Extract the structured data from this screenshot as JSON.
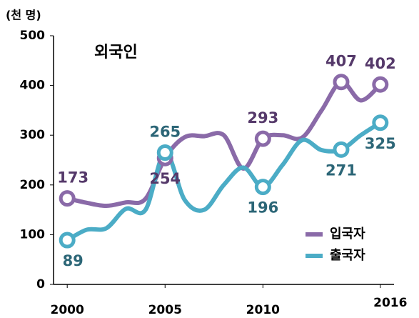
{
  "chart_data": {
    "type": "line",
    "unit_label": "(천 명)",
    "annotation": "외국인",
    "x": [
      2000,
      2001,
      2002,
      2003,
      2004,
      2005,
      2006,
      2007,
      2008,
      2009,
      2010,
      2011,
      2012,
      2013,
      2014,
      2015,
      2016
    ],
    "series": [
      {
        "name": "입국자",
        "color": "#8a6aa8",
        "label_color": "#55396a",
        "values": [
          173,
          164,
          158,
          165,
          172,
          254,
          296,
          298,
          300,
          233,
          293,
          300,
          295,
          350,
          407,
          370,
          402
        ],
        "value_labels": [
          "173",
          null,
          null,
          null,
          null,
          "254",
          null,
          null,
          null,
          null,
          "293",
          null,
          null,
          null,
          "407",
          null,
          "402"
        ]
      },
      {
        "name": "출국자",
        "color": "#4bacc6",
        "label_color": "#2c6677",
        "values": [
          89,
          110,
          113,
          152,
          150,
          265,
          170,
          150,
          200,
          235,
          196,
          240,
          290,
          270,
          271,
          300,
          325
        ],
        "value_labels": [
          "89",
          null,
          null,
          null,
          null,
          "265",
          null,
          null,
          null,
          null,
          "196",
          null,
          null,
          null,
          "271",
          null,
          "325"
        ]
      }
    ],
    "xlim": [
      1999.3,
      2016.7
    ],
    "xticks": [
      2000,
      2005,
      2010,
      2016
    ],
    "ylim": [
      0,
      500
    ],
    "yticks": [
      0,
      100,
      200,
      300,
      400,
      500
    ],
    "grid": false,
    "legend": "lower right"
  }
}
